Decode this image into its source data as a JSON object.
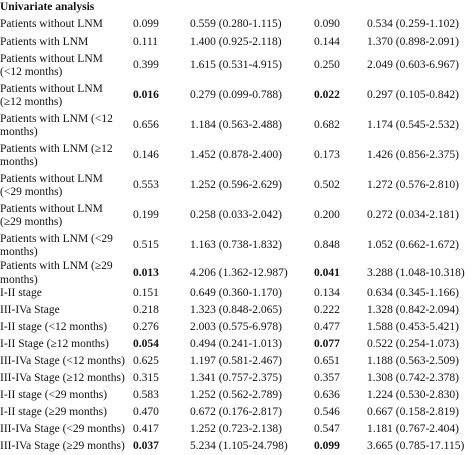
{
  "section_title": "Univariate analysis",
  "rows": [
    {
      "label": "Patients without LNM",
      "p1": "0.099",
      "hr1": "0.559 (0.280-1.115)",
      "p2": "0.090",
      "hr2": "0.534 (0.259-1.102)"
    },
    {
      "label": "Patients with LNM",
      "p1": "0.111",
      "hr1": "1.400 (0.925-2.118)",
      "p2": "0.144",
      "hr2": "1.370 (0.898-2.091)"
    },
    {
      "label": "Patients without LNM (<12 months)",
      "p1": "0.399",
      "hr1": "1.615 (0.531-4.915)",
      "p2": "0.250",
      "hr2": "2.049 (0.603-6.967)"
    },
    {
      "label": "Patients without LNM (≥12 months)",
      "p1": "0.016",
      "p1_bold": true,
      "hr1": "0.279 (0.099-0.788)",
      "p2": "0.022",
      "p2_bold": true,
      "hr2": "0.297 (0.105-0.842)"
    },
    {
      "label": "Patients with LNM (<12 months)",
      "p1": "0.656",
      "hr1": "1.184 (0.563-2.488)",
      "p2": "0.682",
      "hr2": "1.174 (0.545-2.532)"
    },
    {
      "label": "Patients with LNM (≥12 months)",
      "p1": "0.146",
      "hr1": "1.452 (0.878-2.400)",
      "p2": "0.173",
      "hr2": "1.426 (0.856-2.375)"
    },
    {
      "label": "Patients without LNM (<29 months)",
      "p1": "0.553",
      "hr1": "1.252 (0.596-2.629)",
      "p2": "0.502",
      "hr2": "1.272 (0.576-2.810)"
    },
    {
      "label": "Patients without LNM (≥29 months)",
      "p1": "0.199",
      "hr1": "0.258 (0.033-2.042)",
      "p2": "0.200",
      "hr2": "0.272 (0.034-2.181)"
    },
    {
      "label": "Patients with LNM (<29 months)",
      "p1": "0.515",
      "hr1": "1.163 (0.738-1.832)",
      "p2": "0.848",
      "hr2": "1.052 (0.662-1.672)"
    },
    {
      "label": "Patients with LNM (≥29 months)",
      "p1": "0.013",
      "p1_bold": true,
      "hr1": "4.206 (1.362-12.987)",
      "p2": "0.041",
      "p2_bold": true,
      "hr2": "3.288 (1.048-10.318)"
    },
    {
      "label": "I-II stage",
      "p1": "0.151",
      "hr1": "0.649 (0.360-1.170)",
      "p2": "0.134",
      "hr2": "0.634 (0.345-1.166)"
    },
    {
      "label": "III-IVa Stage",
      "p1": "0.218",
      "hr1": "1.323 (0.848-2.065)",
      "p2": "0.222",
      "hr2": "1.328 (0.842-2.094)"
    },
    {
      "label": "I-II stage (<12 months)",
      "p1": "0.276",
      "hr1": "2.003 (0.575-6.978)",
      "p2": "0.477",
      "hr2": "1.588 (0.453-5.421)"
    },
    {
      "label": "I-II Stage (≥12 months)",
      "p1": "0.054",
      "p1_bold": true,
      "hr1": "0.494 (0.241-1.013)",
      "p2": "0.077",
      "p2_bold": true,
      "hr2": "0.522 (0.254-1.073)"
    },
    {
      "label": "III-IVa Stage (<12 months)",
      "p1": "0.625",
      "hr1": "1.197 (0.581-2.467)",
      "p2": "0.651",
      "hr2": "1.188 (0.563-2.509)"
    },
    {
      "label": "III-IVa Stage (≥12 months)",
      "p1": "0.315",
      "hr1": "1.341 (0.757-2.375)",
      "p2": "0.357",
      "hr2": "1.308 (0.742-2.378)"
    },
    {
      "label": "I-II stage (<29 months)",
      "p1": "0.583",
      "hr1": "1.252 (0.562-2.789)",
      "p2": "0.636",
      "hr2": "1.224 (0.530-2.830)"
    },
    {
      "label": "I-II stage (≥29 months)",
      "p1": "0.470",
      "hr1": "0.672 (0.176-2.817)",
      "p2": "0.546",
      "hr2": "0.667 (0.158-2.819)"
    },
    {
      "label": "III-IVa Stage (<29 months)",
      "p1": "0.417",
      "hr1": "1.252 (0.723-2.138)",
      "p2": "0.547",
      "hr2": "1.181 (0.767-2.404)"
    },
    {
      "label": "III-IVa Stage (≥29 months)",
      "p1": "0.037",
      "p1_bold": true,
      "hr1": "5.234 (1.105-24.798)",
      "p2": "0.099",
      "p2_bold": true,
      "hr2": "3.665 (0.785-17.115)"
    }
  ]
}
